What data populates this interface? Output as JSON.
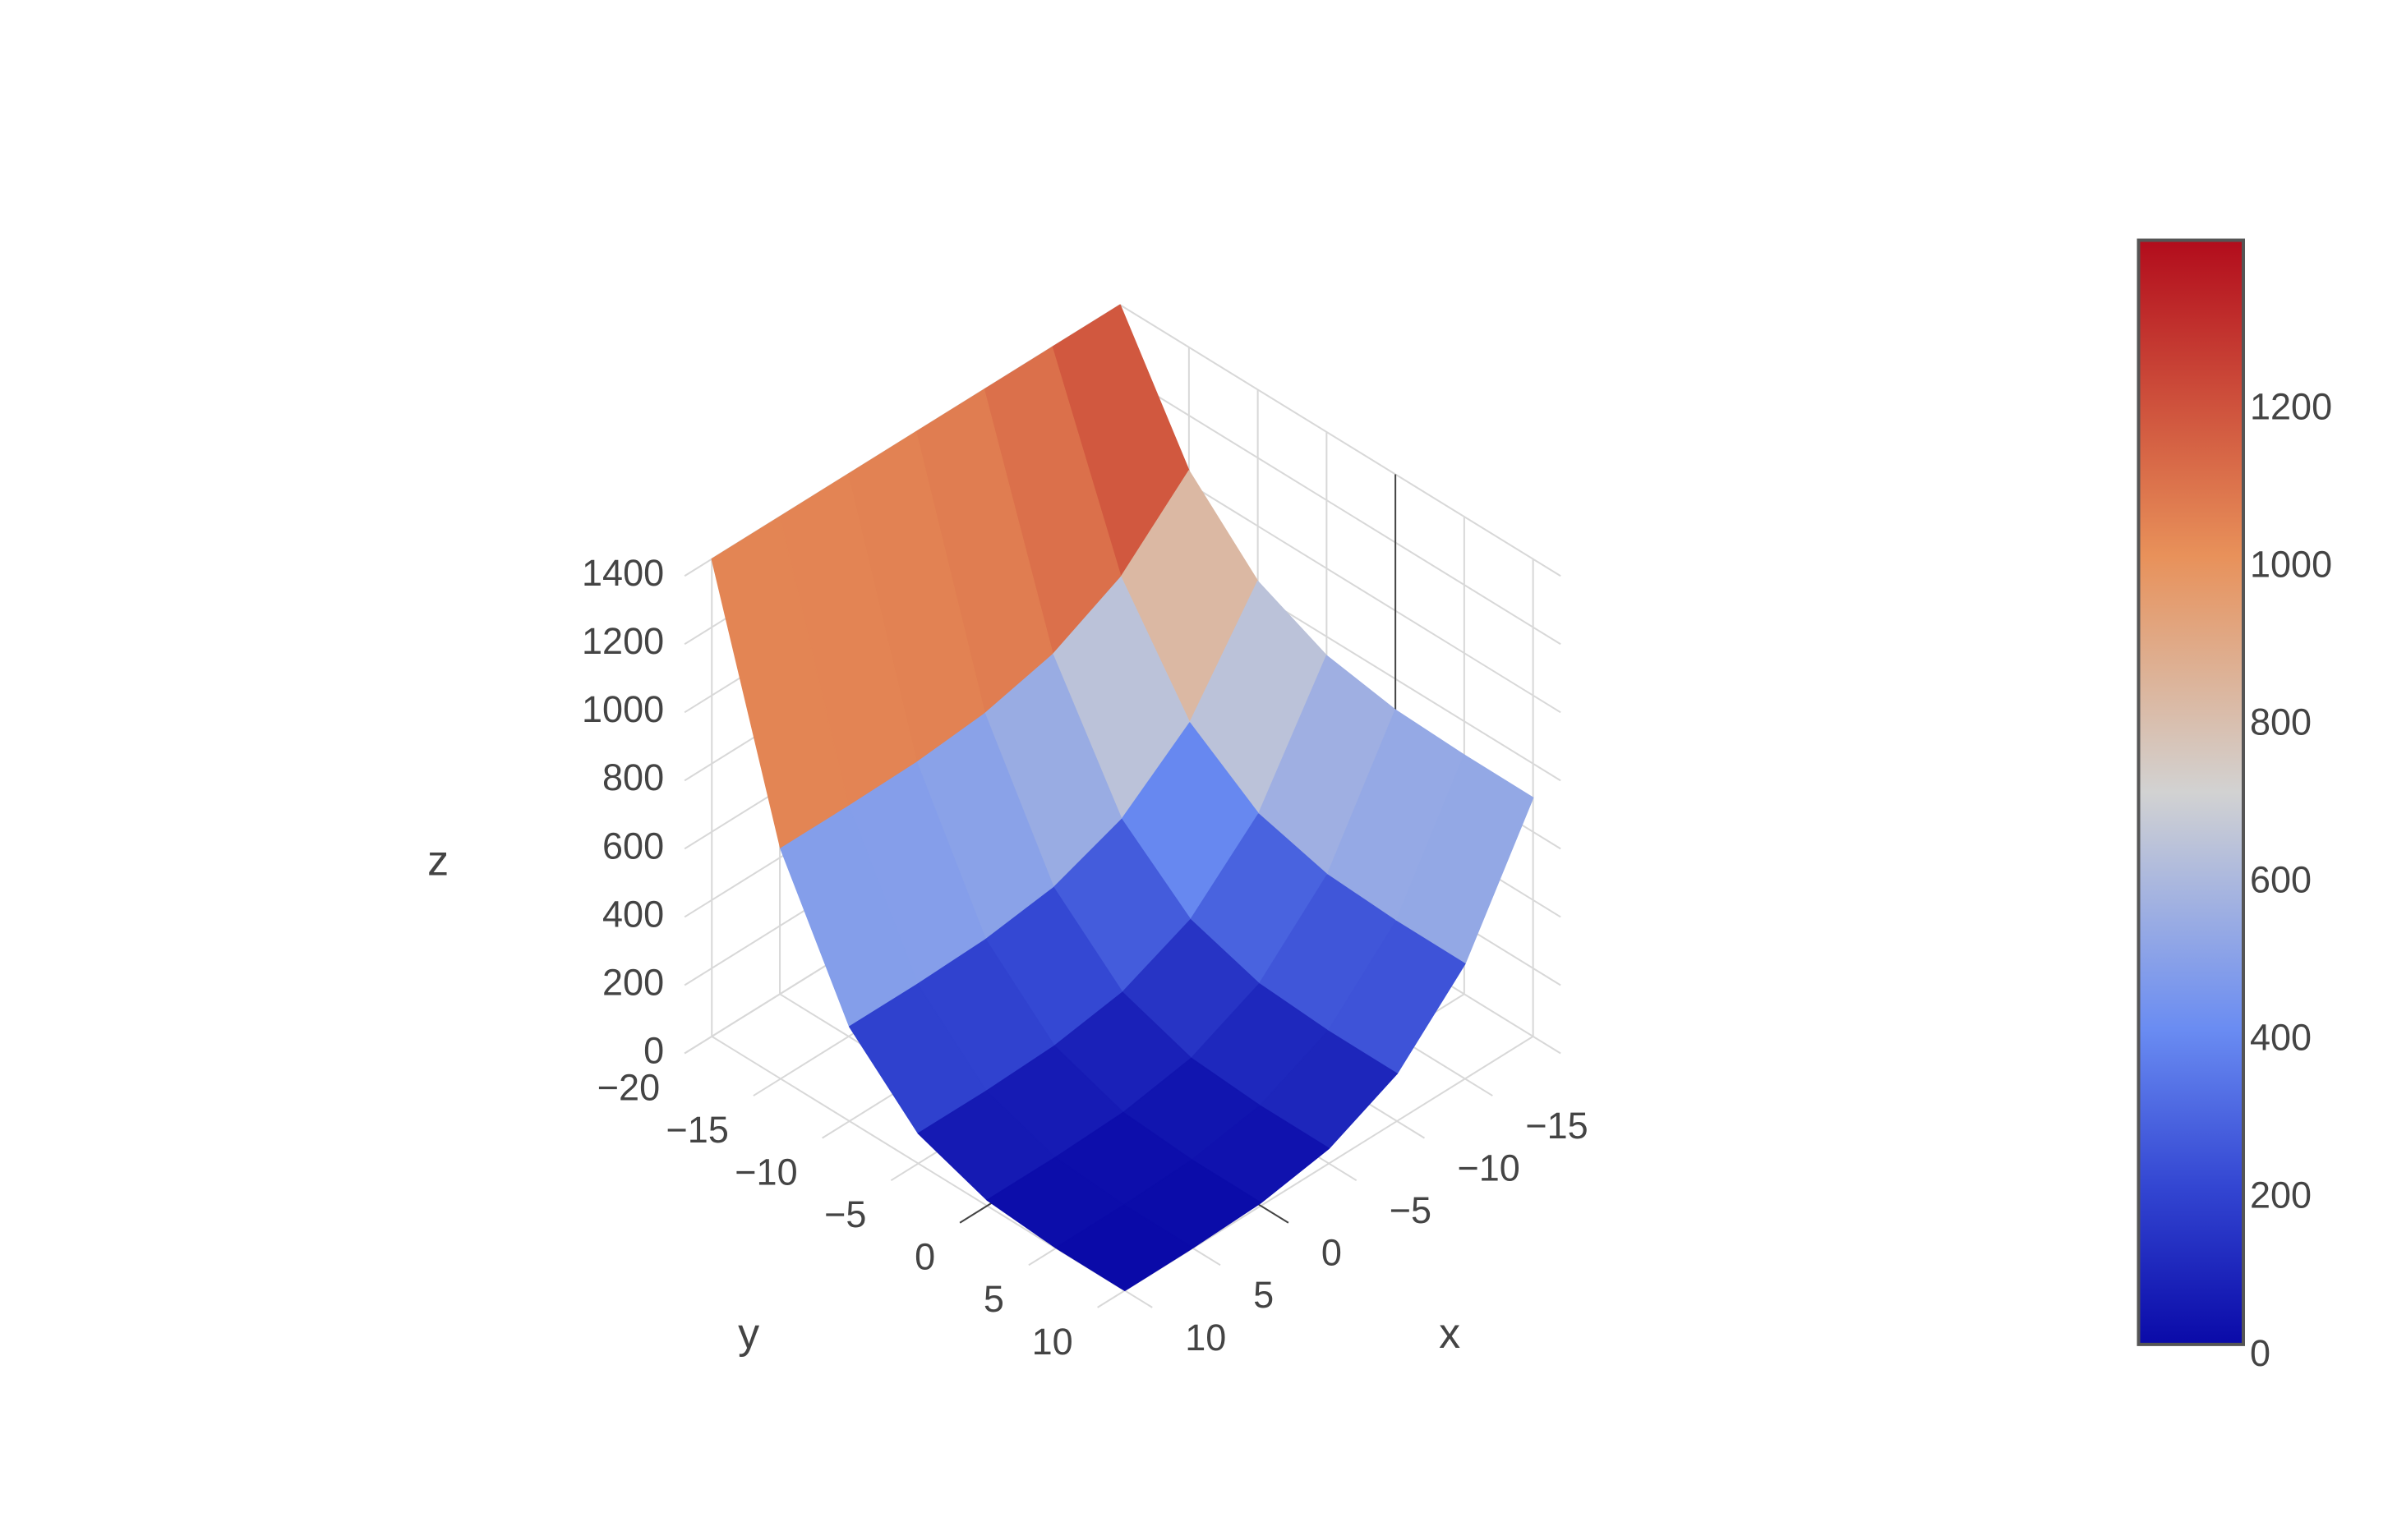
{
  "chart_data": {
    "type": "surface",
    "x": [
      -20,
      -15,
      -10,
      -5,
      0,
      5,
      10
    ],
    "y": [
      -20,
      -15,
      -10,
      -5,
      0,
      5,
      10
    ],
    "z": [
      [
        1400,
        1400,
        1400,
        1400,
        1400,
        1400,
        1400
      ],
      [
        1038,
        850,
        747,
        698,
        679,
        675,
        675
      ],
      [
        838,
        547,
        388,
        312,
        284,
        277,
        277
      ],
      [
        744,
        404,
        218,
        129,
        96,
        88,
        88
      ],
      [
        709,
        350,
        154,
        60,
        25,
        17,
        17
      ],
      [
        701,
        338,
        140,
        45,
        10,
        2,
        1
      ],
      [
        700,
        337,
        139,
        44,
        9,
        1,
        0
      ]
    ],
    "xlim": [
      -20,
      12
    ],
    "ylim": [
      -20,
      12
    ],
    "zlim": [
      0,
      1400
    ],
    "xticks": [
      {
        "value": -15,
        "label": "−15"
      },
      {
        "value": -10,
        "label": "−10"
      },
      {
        "value": -5,
        "label": "−5"
      },
      0,
      5,
      10
    ],
    "yticks": [
      {
        "value": -20,
        "label": "−20"
      },
      {
        "value": -15,
        "label": "−15"
      },
      {
        "value": -10,
        "label": "−10"
      },
      {
        "value": -5,
        "label": "−5"
      },
      0,
      5,
      10
    ],
    "zticks": [
      0,
      200,
      400,
      600,
      800,
      1000,
      1200,
      1400
    ],
    "xlabel": "x",
    "ylabel": "y",
    "zlabel": "z",
    "colorscale": [
      [
        0,
        "#0a0aa8"
      ],
      [
        200,
        "#3346d2"
      ],
      [
        400,
        "#6a8cf2"
      ],
      [
        700,
        "#d2d2d2"
      ],
      [
        1000,
        "#e8915a"
      ],
      [
        1400,
        "#b20c1c"
      ]
    ],
    "colorbar": {
      "lim": [
        0,
        1400
      ],
      "ticks": [
        0,
        200,
        400,
        600,
        800,
        1000,
        1200
      ]
    }
  }
}
